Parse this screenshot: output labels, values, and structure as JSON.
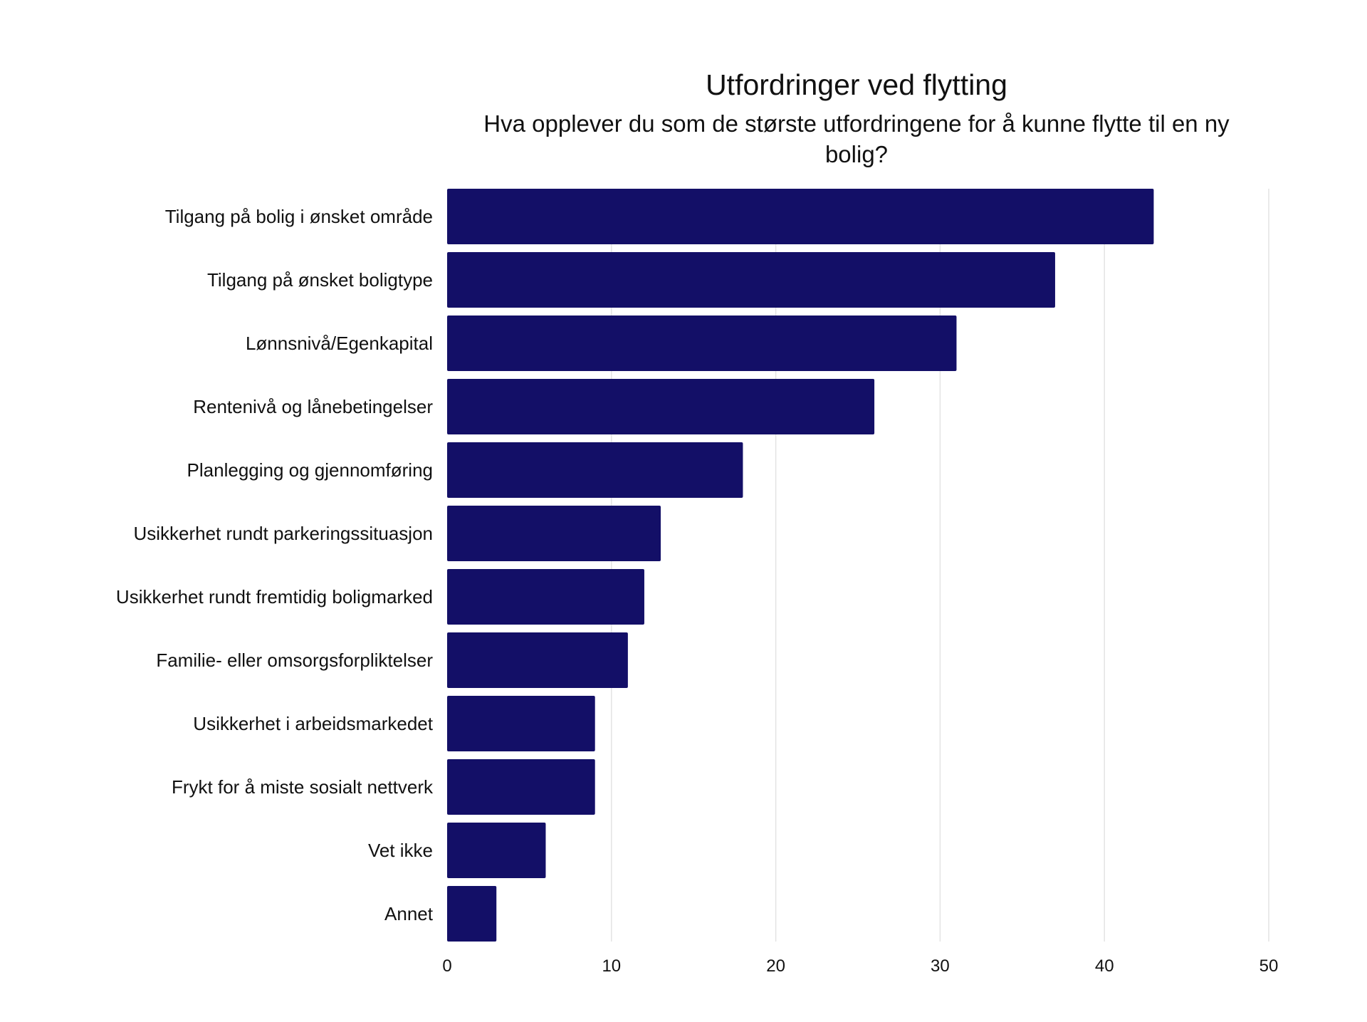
{
  "chart_data": {
    "type": "bar",
    "orientation": "horizontal",
    "title": "Utfordringer ved flytting",
    "subtitle_lines": [
      "Hva opplever du som de største utfordringene for å kunne flytte til en ny",
      "bolig?"
    ],
    "categories": [
      "Tilgang på bolig i ønsket område",
      "Tilgang på ønsket boligtype",
      "Lønnsnivå/Egenkapital",
      "Rentenivå og lånebetingelser",
      "Planlegging og gjennomføring",
      "Usikkerhet rundt parkeringssituasjon",
      "Usikkerhet rundt fremtidig boligmarked",
      "Familie- eller omsorgsforpliktelser",
      "Usikkerhet i arbeidsmarkedet",
      "Frykt for å miste sosialt nettverk",
      "Vet ikke",
      "Annet"
    ],
    "values": [
      43,
      37,
      31,
      26,
      18,
      13,
      12,
      11,
      9,
      9,
      6,
      3
    ],
    "xlim": [
      0,
      50
    ],
    "xticks": [
      "0",
      "10",
      "20",
      "30",
      "40",
      "50"
    ],
    "grid": "vertical",
    "bar_color": "#130f67"
  }
}
